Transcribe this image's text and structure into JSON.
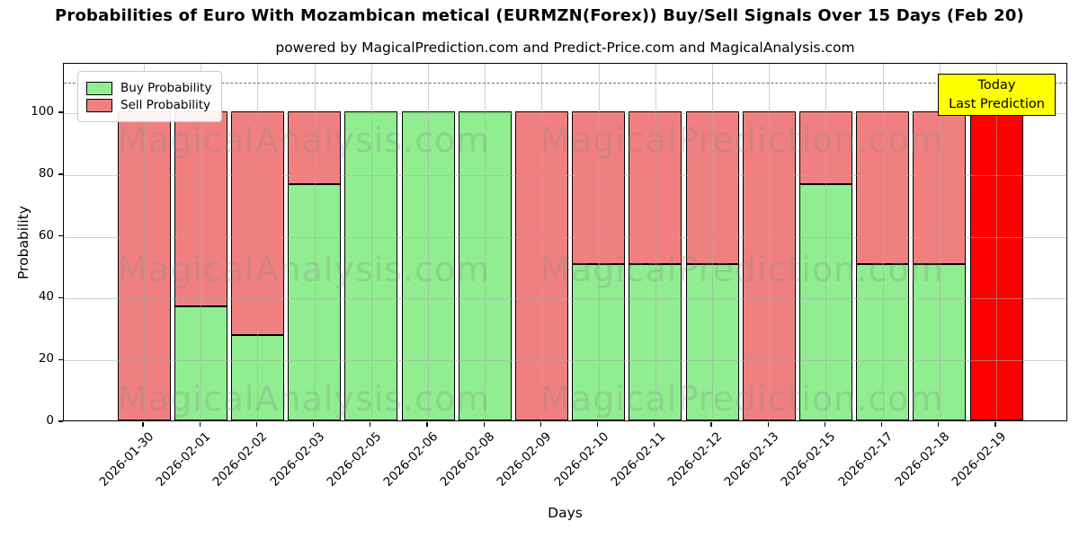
{
  "title": "Probabilities of Euro With Mozambican metical (EURMZN(Forex)) Buy/Sell Signals Over 15 Days (Feb 20)",
  "subtitle": "powered by MagicalPrediction.com and Predict-Price.com and MagicalAnalysis.com",
  "watermarks": {
    "left": "MagicalAnalysis.com",
    "right": "MagicalPrediction.com"
  },
  "annotation_box": {
    "line1": "Today",
    "line2": "Last Prediction",
    "bg": "#FFFF00"
  },
  "legend": [
    {
      "label": "Buy Probability",
      "color": "#90EE90"
    },
    {
      "label": "Sell Probability",
      "color": "#F08080"
    }
  ],
  "chart_data": {
    "type": "bar",
    "stacked": true,
    "title": "Probabilities of Euro With Mozambican metical (EURMZN(Forex)) Buy/Sell Signals Over 15 Days (Feb 20)",
    "xlabel": "Days",
    "ylabel": "Probability",
    "ylim": [
      0,
      116
    ],
    "yticks": [
      0,
      20,
      40,
      60,
      80,
      100
    ],
    "dashed_line_y": 110,
    "grid": true,
    "legend_position": "upper left",
    "categories": [
      "2026-01-30",
      "2026-02-01",
      "2026-02-02",
      "2026-02-03",
      "2026-02-05",
      "2026-02-06",
      "2026-02-08",
      "2026-02-09",
      "2026-02-10",
      "2026-02-11",
      "2026-02-12",
      "2026-02-13",
      "2026-02-15",
      "2026-02-17",
      "2026-02-18",
      "2026-02-19"
    ],
    "series": [
      {
        "name": "Buy Probability",
        "color": "#90EE90",
        "values": [
          0,
          37,
          27.5,
          76.5,
          100,
          100,
          100,
          0,
          50.5,
          50.5,
          50.5,
          0,
          76.5,
          50.5,
          50.5,
          0
        ]
      },
      {
        "name": "Sell Probability",
        "color": "#F08080",
        "values": [
          100,
          63,
          72.5,
          23.5,
          0,
          0,
          0,
          100,
          49.5,
          49.5,
          49.5,
          100,
          23.5,
          49.5,
          49.5,
          100
        ]
      }
    ],
    "today_bar": {
      "index": 15,
      "color": "#FF0000"
    }
  }
}
